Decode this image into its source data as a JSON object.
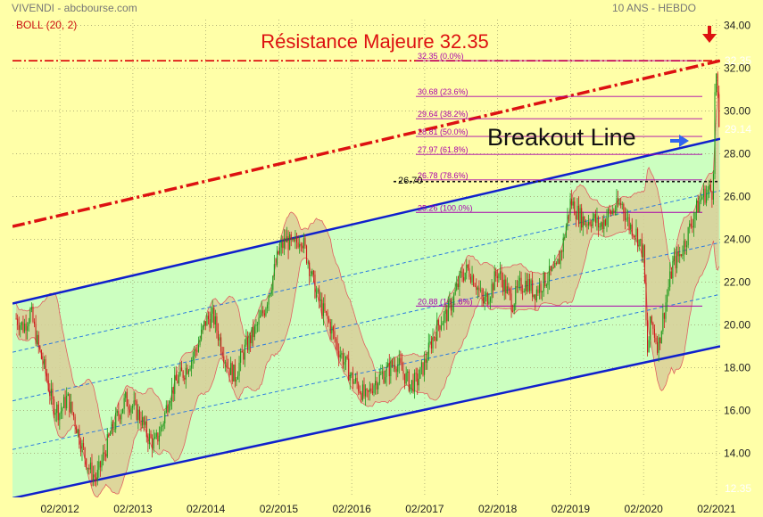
{
  "header": {
    "left_title": "VIVENDI - abcbourse.com",
    "right_title": "10 ANS - HEBDO",
    "indicator": "BOLL (20, 2)"
  },
  "annotations": {
    "resistance": "Résistance Majeure 32.35",
    "breakout": "Breakout Line",
    "level_2670": "26.70"
  },
  "colors": {
    "background": "#ffffa8",
    "channel_fill": "#ccffc0",
    "boll_fill": "#d8cf99",
    "boll_line": "#e06060",
    "channel_line": "#1020cc",
    "resistance": "#dd1111",
    "fib": "#aa00aa",
    "candle_up": "#1a9a1a",
    "candle_down": "#cc1a1a"
  },
  "chart_data": {
    "type": "candlestick",
    "title": "VIVENDI - abcbourse.com",
    "subtitle": "10 ANS - HEBDO",
    "indicator": "BOLL (20, 2)",
    "xlabel": "",
    "ylabel": "",
    "x_ticks": [
      "02/2012",
      "02/2013",
      "02/2014",
      "02/2015",
      "02/2016",
      "02/2017",
      "02/2018",
      "02/2019",
      "02/2020",
      "02/2021"
    ],
    "y_ticks": [
      14,
      16,
      18,
      20,
      22,
      24,
      26,
      28,
      30,
      32,
      34
    ],
    "y_tick_labels": [
      "14.00",
      "16.00",
      "18.00",
      "20.00",
      "22.00",
      "24.00",
      "26.00",
      "28.00",
      "30.00",
      "32.00",
      "34.00"
    ],
    "ylim": [
      12.35,
      34.5
    ],
    "xlim": [
      2011.45,
      2021.15
    ],
    "price_badges": [
      {
        "label": "32.35",
        "value": 32.35,
        "color": "#1a7a1a"
      },
      {
        "label": "29.14",
        "value": 29.14,
        "color": "#3377dd"
      },
      {
        "label": "12.35",
        "value": 12.35,
        "color": "#aa1111"
      }
    ],
    "fibonacci": [
      {
        "label": "32.35  (0.0%)",
        "value": 32.35
      },
      {
        "label": "30.68  (23.6%)",
        "value": 30.68
      },
      {
        "label": "29.64  (38.2%)",
        "value": 29.64
      },
      {
        "label": "28.81  (50.0%)",
        "value": 28.81
      },
      {
        "label": "27.97  (61.8%)",
        "value": 27.97
      },
      {
        "label": "26.78  (78.6%)",
        "value": 26.78
      },
      {
        "label": "25.26  (100.0%)",
        "value": 25.26
      },
      {
        "label": "20.88  (161.8%)",
        "value": 20.88
      }
    ],
    "resistance_level": 32.35,
    "level_2670": 26.7,
    "channel": {
      "upper": [
        [
          2011.45,
          21.0
        ],
        [
          2021.15,
          28.7
        ]
      ],
      "lower": [
        [
          2011.45,
          11.9
        ],
        [
          2021.15,
          19.0
        ]
      ],
      "inner_offsets": [
        0.25,
        0.5,
        0.75
      ]
    },
    "resistance_trendline": [
      [
        2011.45,
        24.6
      ],
      [
        2021.15,
        32.35
      ]
    ],
    "price_path": [
      [
        2011.5,
        20.3
      ],
      [
        2011.6,
        19.9
      ],
      [
        2011.7,
        20.6
      ],
      [
        2011.8,
        19.0
      ],
      [
        2011.9,
        17.8
      ],
      [
        2012.0,
        16.3
      ],
      [
        2012.1,
        15.9
      ],
      [
        2012.2,
        16.6
      ],
      [
        2012.3,
        15.6
      ],
      [
        2012.4,
        14.3
      ],
      [
        2012.5,
        13.3
      ],
      [
        2012.6,
        12.8
      ],
      [
        2012.7,
        13.9
      ],
      [
        2012.8,
        15.0
      ],
      [
        2012.9,
        15.8
      ],
      [
        2013.0,
        16.5
      ],
      [
        2013.1,
        16.2
      ],
      [
        2013.2,
        15.7
      ],
      [
        2013.3,
        14.8
      ],
      [
        2013.4,
        14.4
      ],
      [
        2013.5,
        15.3
      ],
      [
        2013.6,
        16.7
      ],
      [
        2013.7,
        17.4
      ],
      [
        2013.8,
        17.8
      ],
      [
        2013.9,
        18.4
      ],
      [
        2014.0,
        19.1
      ],
      [
        2014.1,
        20.2
      ],
      [
        2014.2,
        20.4
      ],
      [
        2014.3,
        19.2
      ],
      [
        2014.4,
        18.1
      ],
      [
        2014.5,
        17.6
      ],
      [
        2014.6,
        18.6
      ],
      [
        2014.7,
        19.3
      ],
      [
        2014.8,
        19.9
      ],
      [
        2014.9,
        20.7
      ],
      [
        2015.0,
        22.0
      ],
      [
        2015.1,
        23.4
      ],
      [
        2015.2,
        24.0
      ],
      [
        2015.3,
        23.6
      ],
      [
        2015.4,
        24.2
      ],
      [
        2015.5,
        23.0
      ],
      [
        2015.6,
        21.6
      ],
      [
        2015.7,
        20.7
      ],
      [
        2015.8,
        20.0
      ],
      [
        2015.9,
        19.0
      ],
      [
        2016.0,
        18.3
      ],
      [
        2016.1,
        17.5
      ],
      [
        2016.2,
        17.1
      ],
      [
        2016.25,
        16.8
      ],
      [
        2016.3,
        16.5
      ],
      [
        2016.4,
        17.3
      ],
      [
        2016.5,
        17.6
      ],
      [
        2016.6,
        17.9
      ],
      [
        2016.7,
        18.3
      ],
      [
        2016.8,
        17.8
      ],
      [
        2016.9,
        17.2
      ],
      [
        2017.0,
        17.4
      ],
      [
        2017.1,
        18.2
      ],
      [
        2017.2,
        19.3
      ],
      [
        2017.3,
        20.1
      ],
      [
        2017.4,
        20.5
      ],
      [
        2017.5,
        21.3
      ],
      [
        2017.6,
        22.3
      ],
      [
        2017.7,
        22.6
      ],
      [
        2017.8,
        22.0
      ],
      [
        2017.9,
        21.0
      ],
      [
        2018.0,
        21.6
      ],
      [
        2018.1,
        22.5
      ],
      [
        2018.2,
        21.8
      ],
      [
        2018.3,
        21.0
      ],
      [
        2018.4,
        21.8
      ],
      [
        2018.5,
        22.0
      ],
      [
        2018.6,
        21.5
      ],
      [
        2018.7,
        21.9
      ],
      [
        2018.8,
        22.3
      ],
      [
        2018.9,
        22.5
      ],
      [
        2019.0,
        23.9
      ],
      [
        2019.1,
        25.8
      ],
      [
        2019.2,
        25.2
      ],
      [
        2019.3,
        24.8
      ],
      [
        2019.4,
        25.0
      ],
      [
        2019.5,
        24.6
      ],
      [
        2019.6,
        25.1
      ],
      [
        2019.7,
        25.4
      ],
      [
        2019.8,
        25.7
      ],
      [
        2019.9,
        24.7
      ],
      [
        2020.0,
        24.3
      ],
      [
        2020.1,
        23.3
      ],
      [
        2020.15,
        18.6
      ],
      [
        2020.2,
        20.2
      ],
      [
        2020.3,
        19.0
      ],
      [
        2020.4,
        21.0
      ],
      [
        2020.5,
        22.8
      ],
      [
        2020.6,
        23.3
      ],
      [
        2020.7,
        24.2
      ],
      [
        2020.8,
        25.2
      ],
      [
        2020.9,
        26.0
      ],
      [
        2021.0,
        26.3
      ],
      [
        2021.05,
        26.2
      ],
      [
        2021.08,
        31.2
      ],
      [
        2021.1,
        31.8
      ],
      [
        2021.12,
        29.9
      ],
      [
        2021.14,
        29.1
      ]
    ]
  }
}
